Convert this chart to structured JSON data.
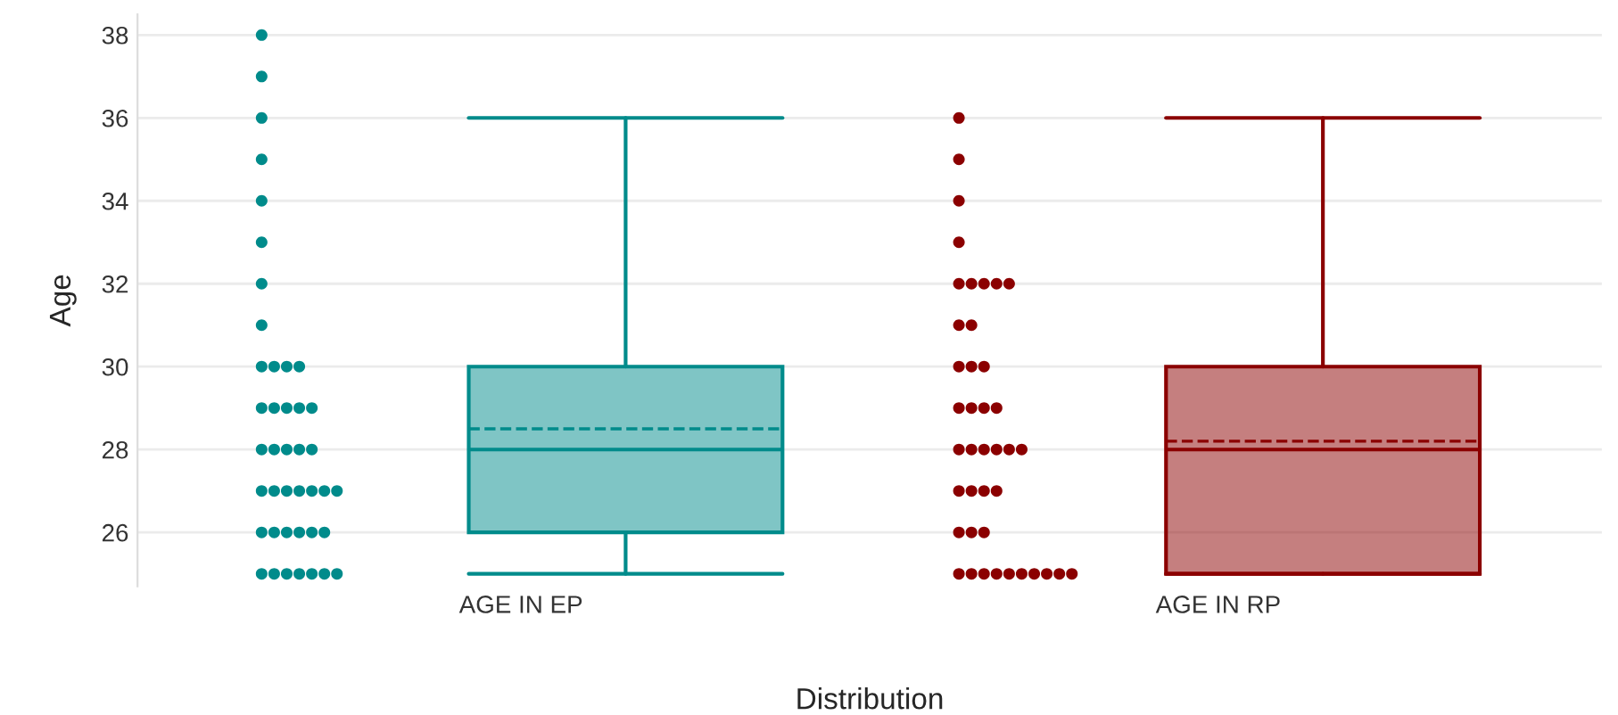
{
  "chart_data": {
    "type": "box",
    "xlabel": "Distribution",
    "ylabel": "Age",
    "categories": [
      "AGE IN EP",
      "AGE IN RP"
    ],
    "ylim": [
      24.7,
      38.5
    ],
    "yticks": [
      26,
      28,
      30,
      32,
      34,
      36,
      38
    ],
    "grid": "y",
    "series": [
      {
        "color": "#008b8b",
        "boxes": [
          {
            "low": 25,
            "q1": 26,
            "median": 28,
            "q3": 30,
            "high": 36,
            "mean": 28.5
          },
          null
        ]
      },
      {
        "color": "#8b0000",
        "boxes": [
          null,
          {
            "low": 25,
            "q1": 25,
            "median": 28,
            "q3": 30,
            "high": 36,
            "mean": 28.2
          }
        ]
      },
      {
        "type": "scatter",
        "color": "#008b8b",
        "x": [
          "AGE IN EP",
          "AGE IN EP",
          "AGE IN EP",
          "AGE IN EP",
          "AGE IN EP",
          "AGE IN EP",
          "AGE IN EP",
          "AGE IN EP",
          "AGE IN EP",
          "AGE IN EP",
          "AGE IN EP",
          "AGE IN EP",
          "AGE IN EP",
          "AGE IN EP",
          "AGE IN EP",
          "AGE IN EP",
          "AGE IN EP",
          "AGE IN EP",
          "AGE IN EP",
          "AGE IN EP",
          "AGE IN EP",
          "AGE IN EP",
          "AGE IN EP",
          "AGE IN EP",
          "AGE IN EP",
          "AGE IN EP",
          "AGE IN EP",
          "AGE IN EP",
          "AGE IN EP",
          "AGE IN EP",
          "AGE IN EP",
          "AGE IN EP",
          "AGE IN EP",
          "AGE IN EP",
          "AGE IN EP",
          "AGE IN EP",
          "AGE IN EP",
          "AGE IN EP",
          "AGE IN EP",
          "AGE IN EP",
          "AGE IN EP",
          "AGE IN EP"
        ],
        "values": [
          38,
          37,
          36,
          35,
          34,
          33,
          32,
          31,
          30,
          30,
          30,
          30,
          29,
          29,
          29,
          29,
          29,
          28,
          28,
          28,
          28,
          28,
          27,
          27,
          27,
          27,
          27,
          27,
          27,
          26,
          26,
          26,
          26,
          26,
          26,
          25,
          25,
          25,
          25,
          25,
          25,
          25
        ]
      },
      {
        "type": "scatter",
        "color": "#8b0000",
        "x": [
          "AGE IN RP",
          "AGE IN RP",
          "AGE IN RP",
          "AGE IN RP",
          "AGE IN RP",
          "AGE IN RP",
          "AGE IN RP",
          "AGE IN RP",
          "AGE IN RP",
          "AGE IN RP",
          "AGE IN RP",
          "AGE IN RP",
          "AGE IN RP",
          "AGE IN RP",
          "AGE IN RP",
          "AGE IN RP",
          "AGE IN RP",
          "AGE IN RP",
          "AGE IN RP",
          "AGE IN RP",
          "AGE IN RP",
          "AGE IN RP",
          "AGE IN RP",
          "AGE IN RP",
          "AGE IN RP",
          "AGE IN RP",
          "AGE IN RP",
          "AGE IN RP",
          "AGE IN RP",
          "AGE IN RP",
          "AGE IN RP",
          "AGE IN RP",
          "AGE IN RP",
          "AGE IN RP",
          "AGE IN RP",
          "AGE IN RP",
          "AGE IN RP",
          "AGE IN RP",
          "AGE IN RP",
          "AGE IN RP",
          "AGE IN RP"
        ],
        "values": [
          36,
          35,
          34,
          33,
          32,
          32,
          32,
          32,
          32,
          31,
          31,
          30,
          30,
          30,
          29,
          29,
          29,
          29,
          28,
          28,
          28,
          28,
          28,
          28,
          27,
          27,
          27,
          27,
          26,
          26,
          26,
          25,
          25,
          25,
          25,
          25,
          25,
          25,
          25,
          25,
          25
        ]
      }
    ]
  }
}
